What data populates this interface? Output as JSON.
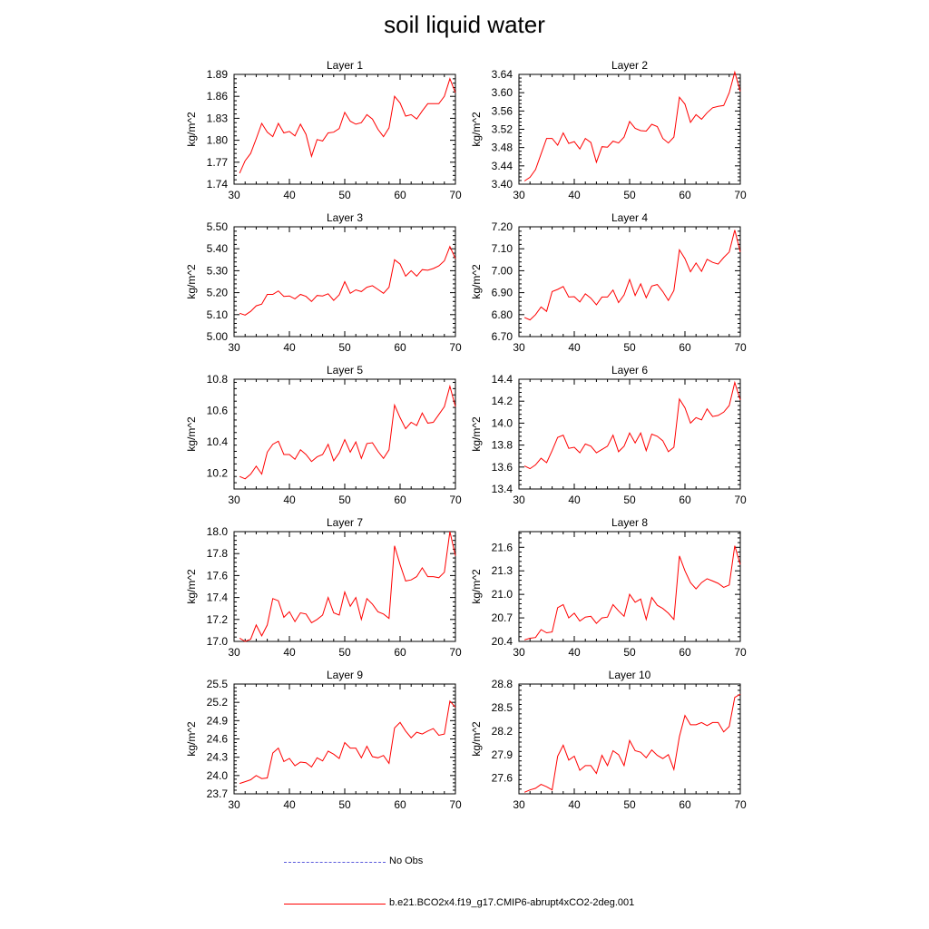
{
  "title": "soil liquid water",
  "colors": {
    "model": "#ff0000",
    "obs": "#5a5adc",
    "axis": "#000000"
  },
  "legend": {
    "obs_label": "No Obs",
    "model_label": "b.e21.BCO2x4.f19_g17.CMIP6-abrupt4xCO2-2deg.001"
  },
  "chart_data": [
    {
      "type": "line",
      "title": "Layer 1",
      "ylabel": "kg/m^2",
      "xlim": [
        30,
        70
      ],
      "ylim": [
        1.74,
        1.89
      ],
      "xticks": [
        "30",
        "40",
        "50",
        "60",
        "70"
      ],
      "yticks": [
        "1.74",
        "1.77",
        "1.80",
        "1.83",
        "1.86",
        "1.89"
      ],
      "x": [
        31,
        32,
        33,
        34,
        35,
        36,
        37,
        38,
        39,
        40,
        41,
        42,
        43,
        44,
        45,
        46,
        47,
        48,
        49,
        50,
        51,
        52,
        53,
        54,
        55,
        56,
        57,
        58,
        59,
        60,
        61,
        62,
        63,
        64,
        65,
        66,
        67,
        68,
        69,
        70
      ],
      "series": [
        {
          "name": "b.e21.BCO2x4.f19_g17.CMIP6-abrupt4xCO2-2deg.001",
          "values": [
            1.755,
            1.772,
            1.782,
            1.802,
            1.823,
            1.811,
            1.805,
            1.823,
            1.81,
            1.812,
            1.806,
            1.822,
            1.808,
            1.778,
            1.801,
            1.799,
            1.81,
            1.811,
            1.816,
            1.838,
            1.826,
            1.822,
            1.824,
            1.835,
            1.829,
            1.815,
            1.805,
            1.817,
            1.86,
            1.851,
            1.833,
            1.835,
            1.829,
            1.84,
            1.85,
            1.85,
            1.85,
            1.86,
            1.884,
            1.865
          ]
        }
      ]
    },
    {
      "type": "line",
      "title": "Layer 2",
      "ylabel": "kg/m^2",
      "xlim": [
        30,
        70
      ],
      "ylim": [
        3.4,
        3.64
      ],
      "xticks": [
        "30",
        "40",
        "50",
        "60",
        "70"
      ],
      "yticks": [
        "3.40",
        "3.44",
        "3.48",
        "3.52",
        "3.56",
        "3.60",
        "3.64"
      ],
      "x": [
        31,
        32,
        33,
        34,
        35,
        36,
        37,
        38,
        39,
        40,
        41,
        42,
        43,
        44,
        45,
        46,
        47,
        48,
        49,
        50,
        51,
        52,
        53,
        54,
        55,
        56,
        57,
        58,
        59,
        60,
        61,
        62,
        63,
        64,
        65,
        66,
        67,
        68,
        69,
        70
      ],
      "series": [
        {
          "name": "b.e21.BCO2x4.f19_g17.CMIP6-abrupt4xCO2-2deg.001",
          "values": [
            3.407,
            3.415,
            3.432,
            3.466,
            3.5,
            3.5,
            3.485,
            3.512,
            3.489,
            3.493,
            3.477,
            3.5,
            3.491,
            3.448,
            3.482,
            3.481,
            3.494,
            3.49,
            3.503,
            3.537,
            3.522,
            3.517,
            3.516,
            3.531,
            3.526,
            3.5,
            3.49,
            3.503,
            3.59,
            3.575,
            3.535,
            3.552,
            3.542,
            3.556,
            3.567,
            3.57,
            3.572,
            3.6,
            3.645,
            3.603
          ]
        }
      ]
    },
    {
      "type": "line",
      "title": "Layer 3",
      "ylabel": "kg/m^2",
      "xlim": [
        30,
        70
      ],
      "ylim": [
        5.0,
        5.5
      ],
      "xticks": [
        "30",
        "40",
        "50",
        "60",
        "70"
      ],
      "yticks": [
        "5.00",
        "5.10",
        "5.20",
        "5.30",
        "5.40",
        "5.50"
      ],
      "x": [
        31,
        32,
        33,
        34,
        35,
        36,
        37,
        38,
        39,
        40,
        41,
        42,
        43,
        44,
        45,
        46,
        47,
        48,
        49,
        50,
        51,
        52,
        53,
        54,
        55,
        56,
        57,
        58,
        59,
        60,
        61,
        62,
        63,
        64,
        65,
        66,
        67,
        68,
        69,
        70
      ],
      "series": [
        {
          "name": "b.e21.BCO2x4.f19_g17.CMIP6-abrupt4xCO2-2deg.001",
          "values": [
            5.106,
            5.098,
            5.115,
            5.14,
            5.148,
            5.192,
            5.192,
            5.208,
            5.183,
            5.185,
            5.172,
            5.192,
            5.183,
            5.16,
            5.187,
            5.185,
            5.195,
            5.165,
            5.19,
            5.25,
            5.197,
            5.213,
            5.205,
            5.225,
            5.232,
            5.215,
            5.197,
            5.225,
            5.35,
            5.33,
            5.275,
            5.3,
            5.275,
            5.305,
            5.302,
            5.31,
            5.322,
            5.345,
            5.41,
            5.355
          ]
        }
      ]
    },
    {
      "type": "line",
      "title": "Layer 4",
      "ylabel": "kg/m^2",
      "xlim": [
        30,
        70
      ],
      "ylim": [
        6.7,
        7.2
      ],
      "xticks": [
        "30",
        "40",
        "50",
        "60",
        "70"
      ],
      "yticks": [
        "6.70",
        "6.80",
        "6.90",
        "7.00",
        "7.10",
        "7.20"
      ],
      "x": [
        31,
        32,
        33,
        34,
        35,
        36,
        37,
        38,
        39,
        40,
        41,
        42,
        43,
        44,
        45,
        46,
        47,
        48,
        49,
        50,
        51,
        52,
        53,
        54,
        55,
        56,
        57,
        58,
        59,
        60,
        61,
        62,
        63,
        64,
        65,
        66,
        67,
        68,
        69,
        70
      ],
      "series": [
        {
          "name": "b.e21.BCO2x4.f19_g17.CMIP6-abrupt4xCO2-2deg.001",
          "values": [
            6.787,
            6.776,
            6.8,
            6.835,
            6.815,
            6.905,
            6.915,
            6.928,
            6.88,
            6.882,
            6.858,
            6.895,
            6.875,
            6.845,
            6.88,
            6.88,
            6.912,
            6.855,
            6.89,
            6.96,
            6.887,
            6.94,
            6.877,
            6.93,
            6.937,
            6.905,
            6.865,
            6.91,
            7.095,
            7.055,
            6.995,
            7.035,
            6.997,
            7.052,
            7.038,
            7.03,
            7.06,
            7.085,
            7.185,
            7.085
          ]
        }
      ]
    },
    {
      "type": "line",
      "title": "Layer 5",
      "ylabel": "kg/m^2",
      "xlim": [
        30,
        70
      ],
      "ylim": [
        10.1,
        10.8
      ],
      "xticks": [
        "30",
        "40",
        "50",
        "60",
        "70"
      ],
      "yticks": [
        "10.2",
        "10.4",
        "10.6",
        "10.8"
      ],
      "x": [
        31,
        32,
        33,
        34,
        35,
        36,
        37,
        38,
        39,
        40,
        41,
        42,
        43,
        44,
        45,
        46,
        47,
        48,
        49,
        50,
        51,
        52,
        53,
        54,
        55,
        56,
        57,
        58,
        59,
        60,
        61,
        62,
        63,
        64,
        65,
        66,
        67,
        68,
        69,
        70
      ],
      "series": [
        {
          "name": "b.e21.BCO2x4.f19_g17.CMIP6-abrupt4xCO2-2deg.001",
          "values": [
            10.18,
            10.165,
            10.195,
            10.245,
            10.195,
            10.335,
            10.385,
            10.405,
            10.32,
            10.32,
            10.29,
            10.35,
            10.32,
            10.275,
            10.305,
            10.32,
            10.385,
            10.28,
            10.33,
            10.415,
            10.335,
            10.4,
            10.295,
            10.39,
            10.395,
            10.34,
            10.295,
            10.35,
            10.635,
            10.555,
            10.485,
            10.525,
            10.505,
            10.585,
            10.52,
            10.525,
            10.575,
            10.625,
            10.755,
            10.625
          ]
        }
      ]
    },
    {
      "type": "line",
      "title": "Layer 6",
      "ylabel": "kg/m^2",
      "xlim": [
        30,
        70
      ],
      "ylim": [
        13.4,
        14.4
      ],
      "xticks": [
        "30",
        "40",
        "50",
        "60",
        "70"
      ],
      "yticks": [
        "13.4",
        "13.6",
        "13.8",
        "14.0",
        "14.2",
        "14.4"
      ],
      "x": [
        31,
        32,
        33,
        34,
        35,
        36,
        37,
        38,
        39,
        40,
        41,
        42,
        43,
        44,
        45,
        46,
        47,
        48,
        49,
        50,
        51,
        52,
        53,
        54,
        55,
        56,
        57,
        58,
        59,
        60,
        61,
        62,
        63,
        64,
        65,
        66,
        67,
        68,
        69,
        70
      ],
      "series": [
        {
          "name": "b.e21.BCO2x4.f19_g17.CMIP6-abrupt4xCO2-2deg.001",
          "values": [
            13.61,
            13.585,
            13.62,
            13.68,
            13.64,
            13.75,
            13.87,
            13.89,
            13.77,
            13.78,
            13.73,
            13.81,
            13.79,
            13.73,
            13.76,
            13.79,
            13.89,
            13.74,
            13.79,
            13.91,
            13.82,
            13.91,
            13.75,
            13.9,
            13.88,
            13.84,
            13.74,
            13.78,
            14.22,
            14.14,
            14.0,
            14.05,
            14.03,
            14.13,
            14.06,
            14.07,
            14.1,
            14.16,
            14.37,
            14.21
          ]
        }
      ]
    },
    {
      "type": "line",
      "title": "Layer 7",
      "ylabel": "kg/m^2",
      "xlim": [
        30,
        70
      ],
      "ylim": [
        17.0,
        18.0
      ],
      "xticks": [
        "30",
        "40",
        "50",
        "60",
        "70"
      ],
      "yticks": [
        "17.0",
        "17.2",
        "17.4",
        "17.6",
        "17.8",
        "18.0"
      ],
      "x": [
        31,
        32,
        33,
        34,
        35,
        36,
        37,
        38,
        39,
        40,
        41,
        42,
        43,
        44,
        45,
        46,
        47,
        48,
        49,
        50,
        51,
        52,
        53,
        54,
        55,
        56,
        57,
        58,
        59,
        60,
        61,
        62,
        63,
        64,
        65,
        66,
        67,
        68,
        69,
        70
      ],
      "series": [
        {
          "name": "b.e21.BCO2x4.f19_g17.CMIP6-abrupt4xCO2-2deg.001",
          "values": [
            17.03,
            17.0,
            17.02,
            17.15,
            17.05,
            17.15,
            17.39,
            17.37,
            17.22,
            17.27,
            17.18,
            17.26,
            17.25,
            17.17,
            17.2,
            17.24,
            17.4,
            17.26,
            17.24,
            17.45,
            17.32,
            17.4,
            17.2,
            17.39,
            17.34,
            17.27,
            17.25,
            17.21,
            17.87,
            17.7,
            17.55,
            17.56,
            17.59,
            17.67,
            17.59,
            17.59,
            17.58,
            17.63,
            18.0,
            17.78
          ]
        }
      ]
    },
    {
      "type": "line",
      "title": "Layer 8",
      "ylabel": "kg/m^2",
      "xlim": [
        30,
        70
      ],
      "ylim": [
        20.4,
        21.8
      ],
      "xticks": [
        "30",
        "40",
        "50",
        "60",
        "70"
      ],
      "yticks": [
        "20.4",
        "20.7",
        "21.0",
        "21.3",
        "21.6"
      ],
      "x": [
        31,
        32,
        33,
        34,
        35,
        36,
        37,
        38,
        39,
        40,
        41,
        42,
        43,
        44,
        45,
        46,
        47,
        48,
        49,
        50,
        51,
        52,
        53,
        54,
        55,
        56,
        57,
        58,
        59,
        60,
        61,
        62,
        63,
        64,
        65,
        66,
        67,
        68,
        69,
        70
      ],
      "series": [
        {
          "name": "b.e21.BCO2x4.f19_g17.CMIP6-abrupt4xCO2-2deg.001",
          "values": [
            20.42,
            20.44,
            20.45,
            20.55,
            20.51,
            20.52,
            20.83,
            20.87,
            20.7,
            20.76,
            20.66,
            20.71,
            20.72,
            20.63,
            20.7,
            20.71,
            20.87,
            20.79,
            20.72,
            21.0,
            20.9,
            20.94,
            20.68,
            20.96,
            20.86,
            20.82,
            20.76,
            20.68,
            21.49,
            21.3,
            21.15,
            21.07,
            21.15,
            21.2,
            21.17,
            21.14,
            21.09,
            21.12,
            21.62,
            21.38
          ]
        }
      ]
    },
    {
      "type": "line",
      "title": "Layer 9",
      "ylabel": "kg/m^2",
      "xlim": [
        30,
        70
      ],
      "ylim": [
        23.7,
        25.5
      ],
      "xticks": [
        "30",
        "40",
        "50",
        "60",
        "70"
      ],
      "yticks": [
        "23.7",
        "24.0",
        "24.3",
        "24.6",
        "24.9",
        "25.2",
        "25.5"
      ],
      "x": [
        31,
        32,
        33,
        34,
        35,
        36,
        37,
        38,
        39,
        40,
        41,
        42,
        43,
        44,
        45,
        46,
        47,
        48,
        49,
        50,
        51,
        52,
        53,
        54,
        55,
        56,
        57,
        58,
        59,
        60,
        61,
        62,
        63,
        64,
        65,
        66,
        67,
        68,
        69,
        70
      ],
      "series": [
        {
          "name": "b.e21.BCO2x4.f19_g17.CMIP6-abrupt4xCO2-2deg.001",
          "values": [
            23.87,
            23.9,
            23.93,
            24.0,
            23.95,
            23.96,
            24.37,
            24.45,
            24.23,
            24.28,
            24.16,
            24.22,
            24.21,
            24.14,
            24.29,
            24.24,
            24.4,
            24.35,
            24.28,
            24.54,
            24.45,
            24.45,
            24.29,
            24.48,
            24.31,
            24.29,
            24.33,
            24.2,
            24.78,
            24.87,
            24.73,
            24.62,
            24.71,
            24.68,
            24.73,
            24.77,
            24.66,
            24.68,
            25.22,
            25.12
          ]
        }
      ]
    },
    {
      "type": "line",
      "title": "Layer 10",
      "ylabel": "kg/m^2",
      "xlim": [
        30,
        70
      ],
      "ylim": [
        27.4,
        28.8
      ],
      "xticks": [
        "30",
        "40",
        "50",
        "60",
        "70"
      ],
      "yticks": [
        "27.6",
        "27.9",
        "28.2",
        "28.5",
        "28.8"
      ],
      "x": [
        31,
        32,
        33,
        34,
        35,
        36,
        37,
        38,
        39,
        40,
        41,
        42,
        43,
        44,
        45,
        46,
        47,
        48,
        49,
        50,
        51,
        52,
        53,
        54,
        55,
        56,
        57,
        58,
        59,
        60,
        61,
        62,
        63,
        64,
        65,
        66,
        67,
        68,
        69,
        70
      ],
      "series": [
        {
          "name": "b.e21.BCO2x4.f19_g17.CMIP6-abrupt4xCO2-2deg.001",
          "values": [
            27.42,
            27.45,
            27.47,
            27.52,
            27.49,
            27.45,
            27.88,
            28.02,
            27.83,
            27.88,
            27.7,
            27.76,
            27.76,
            27.66,
            27.89,
            27.76,
            27.95,
            27.9,
            27.76,
            28.08,
            27.95,
            27.93,
            27.86,
            27.96,
            27.89,
            27.85,
            27.9,
            27.71,
            28.13,
            28.4,
            28.28,
            28.28,
            28.31,
            28.27,
            28.31,
            28.31,
            28.19,
            28.26,
            28.63,
            28.67
          ]
        }
      ]
    }
  ]
}
